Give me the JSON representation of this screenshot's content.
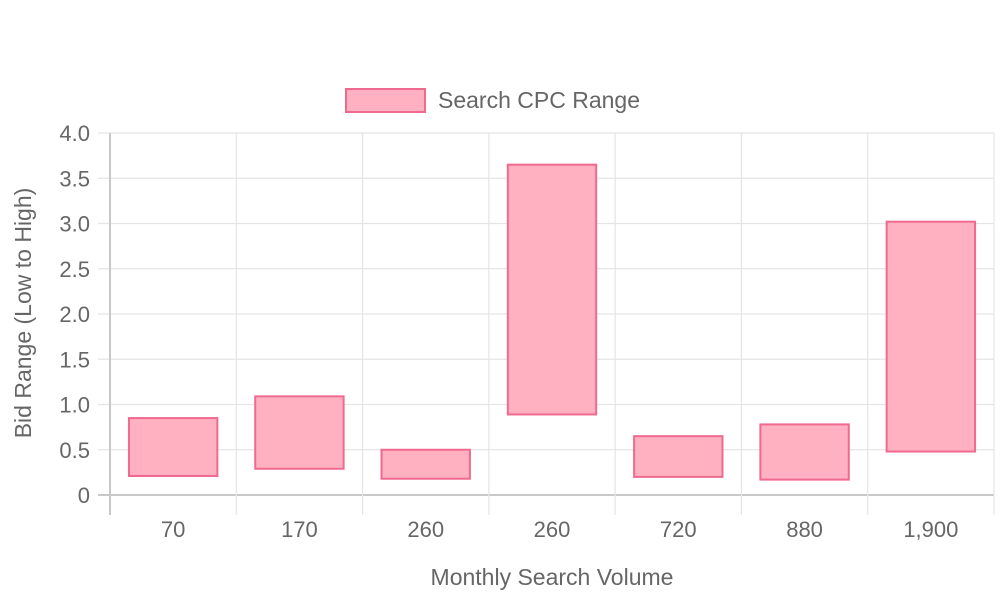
{
  "chart_data": {
    "type": "bar",
    "variant": "floating-range",
    "categories": [
      "70",
      "170",
      "260",
      "260",
      "720",
      "880",
      "1,900"
    ],
    "series": [
      {
        "name": "Search CPC Range",
        "low": [
          0.21,
          0.29,
          0.18,
          0.89,
          0.2,
          0.17,
          0.48
        ],
        "high": [
          0.85,
          1.09,
          0.5,
          3.65,
          0.65,
          0.78,
          3.02
        ]
      }
    ],
    "xlabel": "Monthly Search Volume",
    "ylabel": "Bid Range (Low to High)",
    "ylim": [
      0,
      4.0
    ],
    "yticks": [
      "0",
      "0.5",
      "1.0",
      "1.5",
      "2.0",
      "2.5",
      "3.0",
      "3.5",
      "4.0"
    ],
    "grid": true,
    "legend_position": "top",
    "colors": {
      "bar_fill": "#ffb1c1",
      "bar_border": "#f06a8f",
      "grid": "#e5e5e5",
      "axis": "#c8c8c8",
      "text": "#666666"
    }
  }
}
